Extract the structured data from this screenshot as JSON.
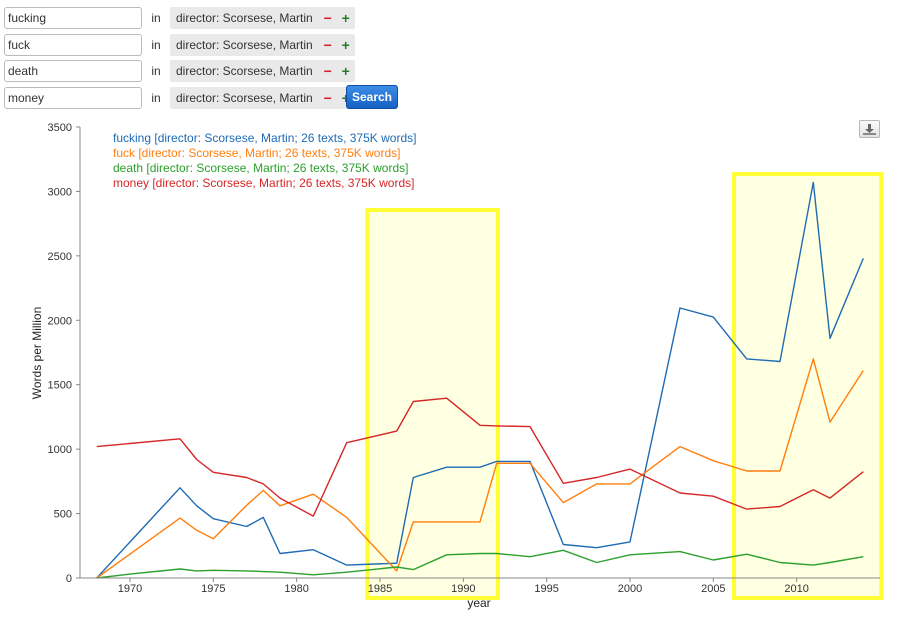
{
  "queries": [
    {
      "term": "fucking",
      "in_label": "in",
      "context": "director: Scorsese, Martin",
      "minus": "−",
      "plus": "+"
    },
    {
      "term": "fuck",
      "in_label": "in",
      "context": "director: Scorsese, Martin",
      "minus": "−",
      "plus": "+"
    },
    {
      "term": "death",
      "in_label": "in",
      "context": "director: Scorsese, Martin",
      "minus": "−",
      "plus": "+"
    },
    {
      "term": "money",
      "in_label": "in",
      "context": "director: Scorsese, Martin",
      "minus": "−",
      "plus": "+"
    }
  ],
  "search_label": "Search",
  "download_icon": "download-icon",
  "colors": {
    "fucking": "#1f6bb4",
    "fuck": "#ff7f0e",
    "death": "#2ca02c",
    "money": "#d62728",
    "highlight": "#ffff33"
  },
  "chart_data": {
    "type": "line",
    "title": "",
    "xlabel": "year",
    "ylabel": "Words per Million",
    "xlim": [
      1967,
      2015
    ],
    "ylim": [
      0,
      3500
    ],
    "xticks": [
      1970,
      1975,
      1980,
      1985,
      1990,
      1995,
      2000,
      2005,
      2010
    ],
    "yticks": [
      0,
      500,
      1000,
      1500,
      2000,
      2500,
      3000,
      3500
    ],
    "legend_position": "top-left",
    "highlighted_ranges": [
      [
        1984,
        1991
      ],
      [
        2006,
        2014
      ]
    ],
    "series": [
      {
        "name": "fucking [director: Scorsese, Martin; 26 texts, 375K words]",
        "color": "#1f6bb4",
        "x": [
          1968,
          1973,
          1974,
          1975,
          1977,
          1978,
          1979,
          1981,
          1983,
          1986,
          1987,
          1989,
          1991,
          1992,
          1994,
          1996,
          1998,
          2000,
          2003,
          2005,
          2007,
          2009,
          2011,
          2012,
          2014
        ],
        "y": [
          0,
          700,
          560,
          460,
          400,
          470,
          190,
          220,
          100,
          115,
          780,
          860,
          860,
          905,
          905,
          260,
          235,
          280,
          2095,
          2025,
          1700,
          1680,
          3070,
          1860,
          2480
        ]
      },
      {
        "name": "fuck [director: Scorsese, Martin; 26 texts, 375K words]",
        "color": "#ff7f0e",
        "x": [
          1968,
          1973,
          1974,
          1975,
          1977,
          1978,
          1979,
          1981,
          1983,
          1986,
          1987,
          1989,
          1991,
          1992,
          1994,
          1996,
          1998,
          2000,
          2003,
          2005,
          2007,
          2009,
          2011,
          2012,
          2014
        ],
        "y": [
          0,
          465,
          370,
          305,
          565,
          680,
          560,
          650,
          470,
          55,
          435,
          435,
          435,
          890,
          890,
          585,
          730,
          730,
          1020,
          910,
          830,
          830,
          1700,
          1210,
          1610
        ]
      },
      {
        "name": "death [director: Scorsese, Martin; 26 texts, 375K words]",
        "color": "#2ca02c",
        "x": [
          1968,
          1970,
          1973,
          1974,
          1975,
          1977,
          1978,
          1979,
          1981,
          1983,
          1986,
          1987,
          1989,
          1991,
          1992,
          1994,
          1996,
          1998,
          2000,
          2003,
          2005,
          2007,
          2009,
          2011,
          2012,
          2014
        ],
        "y": [
          0,
          30,
          70,
          55,
          60,
          55,
          50,
          45,
          25,
          45,
          85,
          65,
          180,
          190,
          190,
          165,
          215,
          120,
          180,
          205,
          140,
          185,
          120,
          100,
          120,
          165
        ]
      },
      {
        "name": "money [director: Scorsese, Martin; 26 texts, 375K words]",
        "color": "#d62728",
        "x": [
          1968,
          1973,
          1974,
          1975,
          1977,
          1978,
          1979,
          1981,
          1983,
          1986,
          1987,
          1989,
          1991,
          1992,
          1994,
          1996,
          1998,
          2000,
          2003,
          2005,
          2007,
          2009,
          2011,
          2012,
          2014
        ],
        "y": [
          1020,
          1080,
          920,
          820,
          780,
          730,
          620,
          480,
          1050,
          1140,
          1370,
          1395,
          1185,
          1180,
          1175,
          735,
          780,
          845,
          660,
          635,
          535,
          555,
          685,
          620,
          825
        ]
      }
    ]
  }
}
